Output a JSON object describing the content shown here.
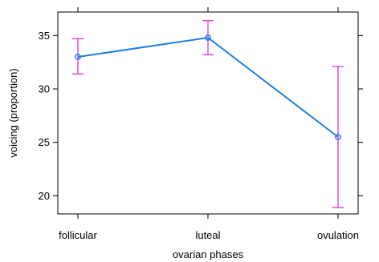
{
  "chart_data": {
    "type": "line",
    "xlabel": "ovarian phases",
    "ylabel": "voicing (proportion)",
    "categories": [
      "follicular",
      "luteal",
      "ovulation"
    ],
    "yticks": [
      20,
      25,
      30,
      35
    ],
    "ylim": [
      18.3,
      37.2
    ],
    "series": [
      {
        "values": [
          33.0,
          34.8,
          25.5
        ],
        "error_low": [
          31.4,
          33.2,
          18.9
        ],
        "error_high": [
          34.7,
          36.4,
          32.1
        ]
      }
    ],
    "grid": false,
    "colors": {
      "line": "#1e7fe0",
      "error_bars": "#e020e0",
      "axis": "#000000"
    }
  }
}
